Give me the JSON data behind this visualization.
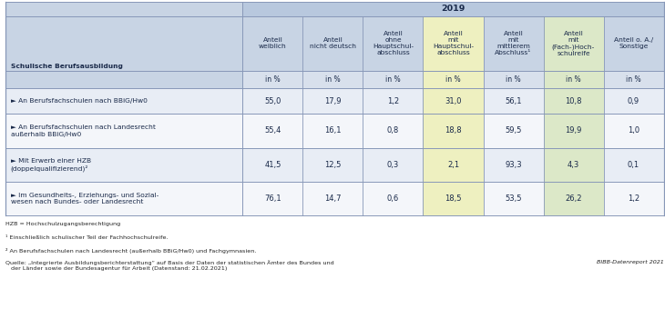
{
  "title": "2019",
  "col_headers": [
    "Anteil\nweiblich",
    "Anteil\nnicht deutsch",
    "Anteil\nohne\nHauptschul-\nabschluss",
    "Anteil\nmit\nHauptschul-\nabschluss",
    "Anteil\nmit\nmittlerem\nAbschluss¹",
    "Anteil\nmit\n(Fach-)Hoch-\nschulreife",
    "Anteil o. A./\nSonstige"
  ],
  "unit_row": [
    "in %",
    "in %",
    "in %",
    "in %",
    "in %",
    "in %",
    "in %"
  ],
  "row_labels": [
    "► An Berufsfachschulen nach BBiG/Hw0",
    "► An Berufsfachschulen nach Landesrecht\naußerhalb BBiG/Hw0",
    "► Mit Erwerb einer HZB\n(doppelqualifizierend)²",
    "► Im Gesundheits-, Erziehungs- und Sozial-\nwesen nach Bundes- oder Landesrecht"
  ],
  "data": [
    [
      55.0,
      17.9,
      1.2,
      31.0,
      56.1,
      10.8,
      0.9
    ],
    [
      55.4,
      16.1,
      0.8,
      18.8,
      59.5,
      19.9,
      1.0
    ],
    [
      41.5,
      12.5,
      0.3,
      2.1,
      93.3,
      4.3,
      0.1
    ],
    [
      76.1,
      14.7,
      0.6,
      18.5,
      53.5,
      26.2,
      1.2
    ]
  ],
  "footnotes": [
    "HZB = Hochschulzugangsberechtigung",
    "¹ Einschließlich schulischer Teil der Fachhochschulreife.",
    "² An Berufsfachschulen nach Landesrecht (außerhalb BBiG/Hw0) und Fachgymnasien.",
    "Quelle: „Integrierte Ausbildungsberichterstattung“ auf Basis der Daten der statistischen Ämter des Bundes und\n   der Länder sowie der Bundesagentur für Arbeit (Datenstand: 21.02.2021)"
  ],
  "bibb_text": "BIBB-Datenreport 2021",
  "header_bg": "#b8c8de",
  "subheader_bg": "#c8d4e4",
  "unit_bg": "#d8e0ec",
  "row_bg_odd": "#e8edf5",
  "row_bg_even": "#f4f6fa",
  "highlight_yellow": "#eef0c0",
  "highlight_green": "#dce8c8",
  "border_color": "#8898b8",
  "text_color": "#1a2a4a",
  "footnote_color": "#222222"
}
